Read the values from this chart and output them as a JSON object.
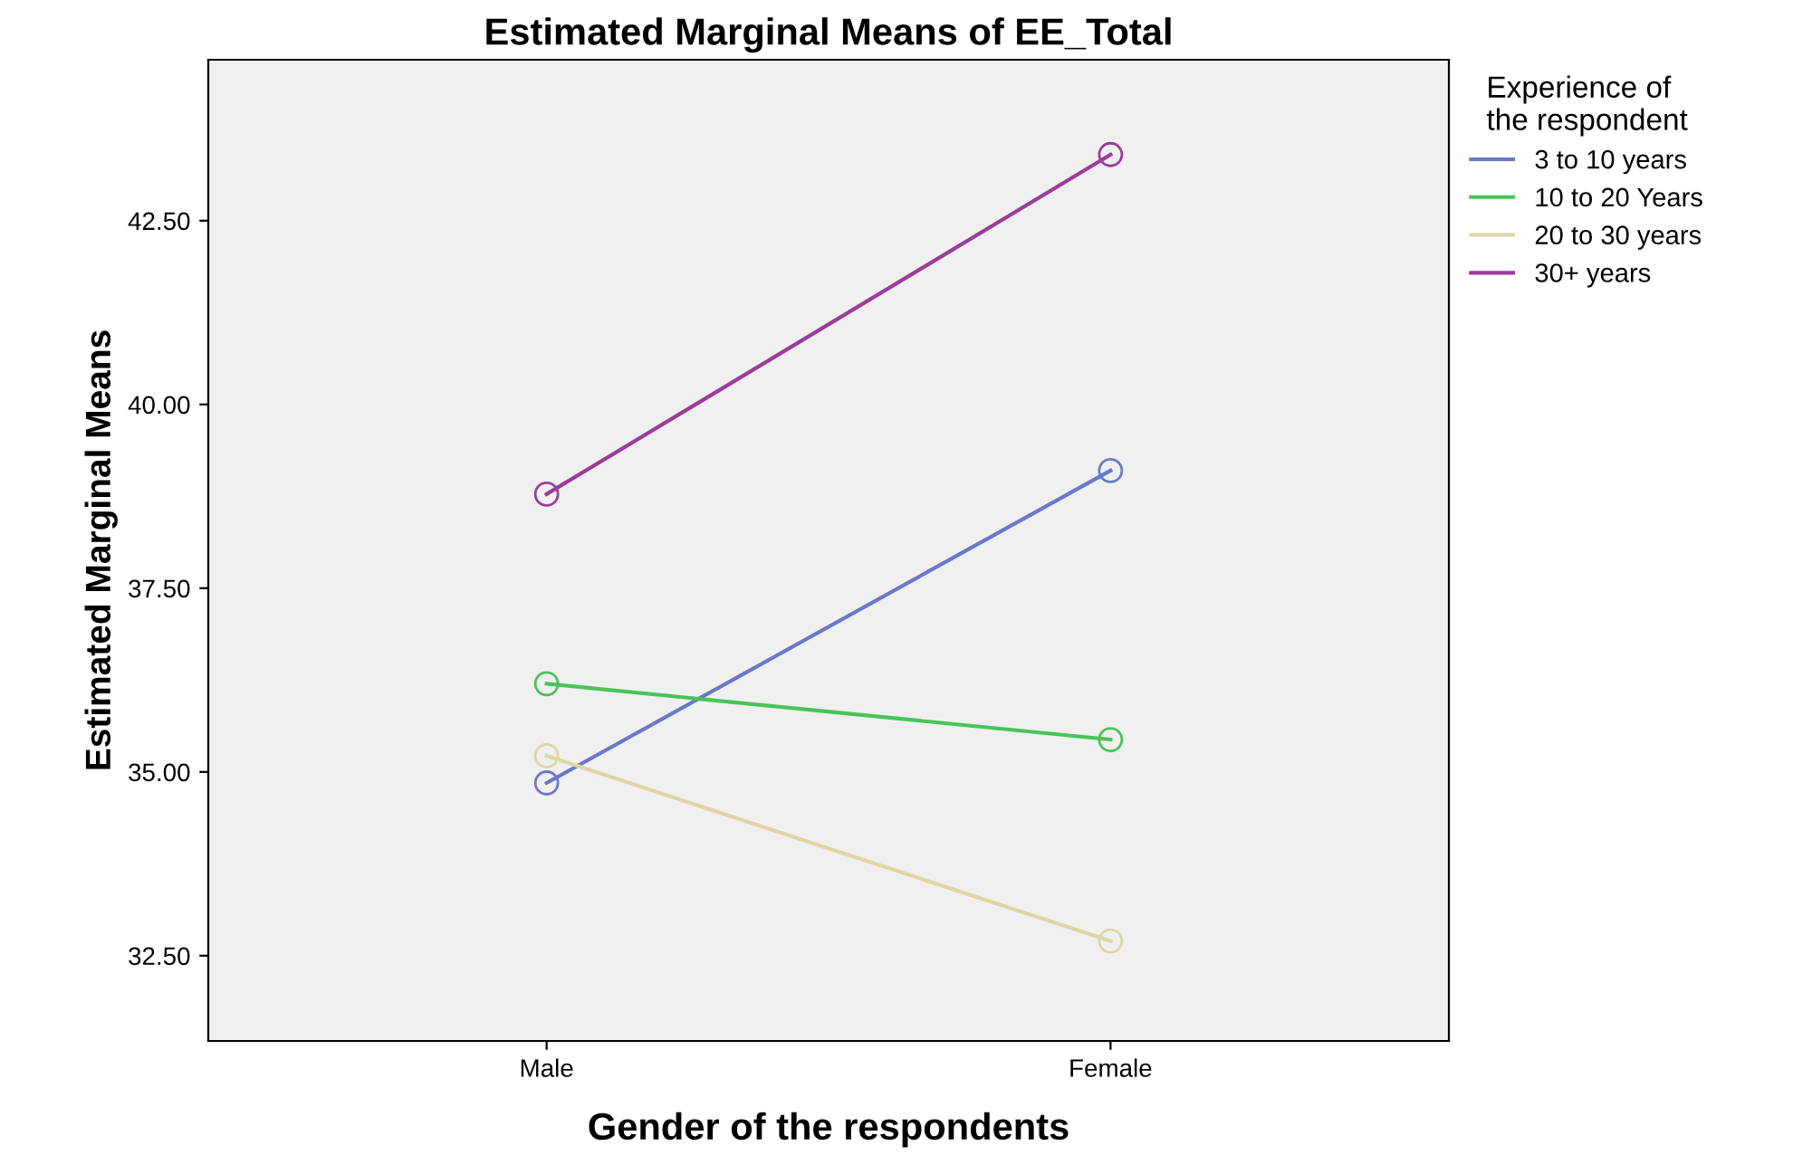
{
  "chart_data": {
    "type": "line",
    "title": "Estimated Marginal Means of EE_Total",
    "xlabel": "Gender of the respondents",
    "ylabel": "Estimated Marginal Means",
    "legend_title": "Experience of\nthe respondent",
    "categories": [
      "Male",
      "Female"
    ],
    "series": [
      {
        "name": "3 to 10 years",
        "color": "#6a78c8",
        "values": [
          34.85,
          39.1
        ]
      },
      {
        "name": "10 to 20 Years",
        "color": "#48c458",
        "values": [
          36.2,
          35.44
        ]
      },
      {
        "name": "20 to 30 years",
        "color": "#ddd5a4",
        "values": [
          35.22,
          32.7
        ]
      },
      {
        "name": "30+ years",
        "color": "#9b3c9b",
        "values": [
          38.78,
          43.4
        ]
      }
    ],
    "ylim": [
      31.34,
      44.69
    ],
    "yticks": [
      {
        "value": 32.5,
        "label": "32.50"
      },
      {
        "value": 35,
        "label": "35.00"
      },
      {
        "value": 37.5,
        "label": "37.50"
      },
      {
        "value": 40,
        "label": "40.00"
      },
      {
        "value": 42.5,
        "label": "42.50"
      }
    ],
    "marker": "circle",
    "line_style": "solid",
    "grid": false,
    "legend": "top right"
  }
}
